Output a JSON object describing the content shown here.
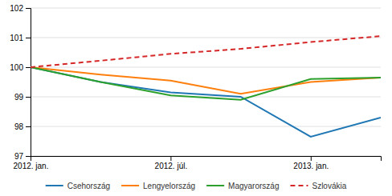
{
  "chart_data": {
    "type": "line",
    "x": [
      0,
      3,
      6,
      9,
      12,
      15
    ],
    "xlim": [
      0,
      15
    ],
    "xticks": [
      {
        "value": 0,
        "label": "2012. jan."
      },
      {
        "value": 6,
        "label": "2012. júl."
      },
      {
        "value": 12,
        "label": "2013. jan."
      }
    ],
    "ylim": [
      97,
      102
    ],
    "yticks": [
      97,
      98,
      99,
      100,
      101,
      102
    ],
    "grid": true,
    "legend": "bottom",
    "series": [
      {
        "name": "Csehország",
        "values": [
          100.0,
          99.5,
          99.15,
          99.0,
          97.65,
          98.3
        ],
        "line_style": "solid"
      },
      {
        "name": "Lengyelország",
        "values": [
          100.0,
          99.75,
          99.55,
          99.1,
          99.5,
          99.65
        ],
        "line_style": "solid"
      },
      {
        "name": "Magyarország",
        "values": [
          100.0,
          99.5,
          99.05,
          98.9,
          99.6,
          99.65
        ],
        "line_style": "solid"
      },
      {
        "name": "Szlovákia",
        "values": [
          100.0,
          100.22,
          100.45,
          100.62,
          100.85,
          101.05
        ],
        "line_style": "dashed"
      }
    ]
  }
}
